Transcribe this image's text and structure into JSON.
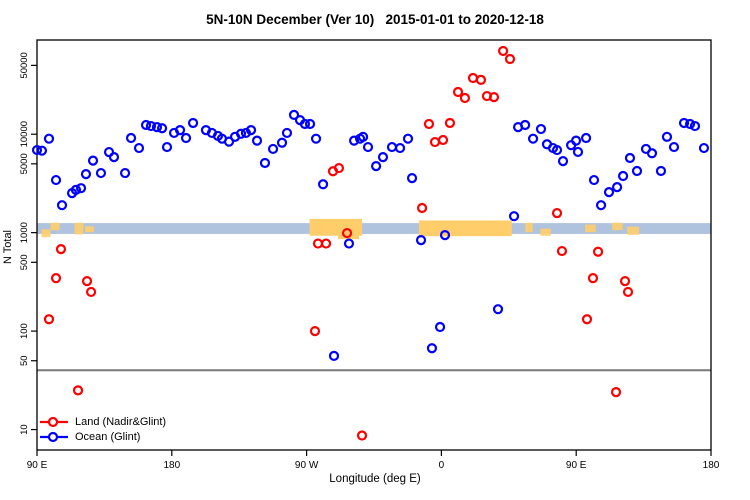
{
  "title": "5N-10N December (Ver 10)   2015-01-01 to 2020-12-18",
  "chart_data": {
    "type": "scatter",
    "title": "5N-10N December (Ver 10)   2015-01-01 to 2020-12-18",
    "xlabel": "Longitude (deg E)",
    "ylabel": "N Total",
    "grid": false,
    "legend_position": "inside-bottom-left",
    "x_axis": {
      "span": 450,
      "ticks": [
        {
          "t": 0,
          "label": "90 E"
        },
        {
          "t": 90,
          "label": "180"
        },
        {
          "t": 180,
          "label": "90 W"
        },
        {
          "t": 270,
          "label": "0"
        },
        {
          "t": 360,
          "label": "90 E"
        },
        {
          "t": 450,
          "label": "180"
        }
      ]
    },
    "y_axis": {
      "log": true,
      "min": 6.2,
      "max": 90500,
      "ticks": [
        10,
        50,
        100,
        500,
        1000,
        5000,
        10000,
        50000
      ]
    },
    "threshold_line": {
      "value": 40,
      "color": "#787878"
    },
    "band": {
      "from": 970,
      "to": 1250,
      "color": "#AFC2DE"
    },
    "orange_segments": [
      {
        "t0": 182,
        "t1": 217,
        "v0": 930,
        "v1": 1380,
        "minor": false
      },
      {
        "t0": 201,
        "t1": 215,
        "v0": 860,
        "v1": 980,
        "minor": false
      },
      {
        "t0": 255,
        "t1": 317,
        "v0": 920,
        "v1": 1330,
        "minor": false
      },
      {
        "t0": 3,
        "t1": 9,
        "v0": 900,
        "v1": 1080,
        "minor": true
      },
      {
        "t0": 9,
        "t1": 15,
        "v0": 1060,
        "v1": 1260,
        "minor": true
      },
      {
        "t0": 25,
        "t1": 31,
        "v0": 960,
        "v1": 1260,
        "minor": true
      },
      {
        "t0": 32,
        "t1": 38,
        "v0": 1010,
        "v1": 1160,
        "minor": true
      },
      {
        "t0": 326,
        "t1": 331,
        "v0": 1010,
        "v1": 1260,
        "minor": true
      },
      {
        "t0": 336,
        "t1": 343,
        "v0": 930,
        "v1": 1100,
        "minor": true
      },
      {
        "t0": 366,
        "t1": 373,
        "v0": 1010,
        "v1": 1210,
        "minor": true
      },
      {
        "t0": 384,
        "t1": 391,
        "v0": 1060,
        "v1": 1260,
        "minor": true
      },
      {
        "t0": 394,
        "t1": 402,
        "v0": 950,
        "v1": 1150,
        "minor": true
      }
    ],
    "orange_color": "#FFCE6B",
    "series": [
      {
        "name": "Land (Nadir&Glint)",
        "color": "#FF0000",
        "points": [
          [
            8,
            132
          ],
          [
            12.7,
            345
          ],
          [
            16,
            680
          ],
          [
            27.4,
            25
          ],
          [
            33.4,
            322
          ],
          [
            36.1,
            250
          ],
          [
            185.6,
            100
          ],
          [
            187.6,
            775
          ],
          [
            193,
            775
          ],
          [
            197.6,
            4200
          ],
          [
            201.6,
            4530
          ],
          [
            207,
            990
          ],
          [
            217,
            8.7
          ],
          [
            257.1,
            1780
          ],
          [
            261.7,
            12700
          ],
          [
            265.7,
            8320
          ],
          [
            271.1,
            8730
          ],
          [
            275.7,
            13000
          ],
          [
            281.1,
            26800
          ],
          [
            285.7,
            23300
          ],
          [
            291.1,
            37200
          ],
          [
            296.4,
            35600
          ],
          [
            300.4,
            24400
          ],
          [
            305.1,
            23800
          ],
          [
            311.2,
            70000
          ],
          [
            315.8,
            58000
          ],
          [
            347.2,
            1580
          ],
          [
            350.5,
            650
          ],
          [
            367.2,
            132
          ],
          [
            371.2,
            345
          ],
          [
            374.6,
            640
          ],
          [
            386.6,
            24
          ],
          [
            392.6,
            322
          ],
          [
            394.6,
            250
          ]
        ]
      },
      {
        "name": "Ocean (Glint)",
        "color": "#0000FF",
        "points": [
          [
            0,
            6900
          ],
          [
            3.3,
            6800
          ],
          [
            8,
            9000
          ],
          [
            12.7,
            3420
          ],
          [
            16.7,
            1900
          ],
          [
            23.4,
            2520
          ],
          [
            26,
            2720
          ],
          [
            29.4,
            2830
          ],
          [
            32.7,
            3930
          ],
          [
            37.4,
            5390
          ],
          [
            42.7,
            4030
          ],
          [
            48.1,
            6580
          ],
          [
            51.4,
            5850
          ],
          [
            58.8,
            4030
          ],
          [
            62.8,
            9140
          ],
          [
            68.1,
            7230
          ],
          [
            72.8,
            12400
          ],
          [
            76.1,
            12100
          ],
          [
            80.1,
            11800
          ],
          [
            83.5,
            11500
          ],
          [
            86.8,
            7400
          ],
          [
            91.5,
            10300
          ],
          [
            95.5,
            11000
          ],
          [
            99.5,
            9140
          ],
          [
            104.2,
            13000
          ],
          [
            112.8,
            11000
          ],
          [
            116.8,
            10300
          ],
          [
            120.8,
            9600
          ],
          [
            123.5,
            9000
          ],
          [
            128.2,
            8400
          ],
          [
            132.2,
            9400
          ],
          [
            136.2,
            10100
          ],
          [
            139.5,
            10300
          ],
          [
            142.9,
            11000
          ],
          [
            146.9,
            8600
          ],
          [
            152.2,
            5100
          ],
          [
            157.6,
            7080
          ],
          [
            163.6,
            8190
          ],
          [
            166.9,
            10300
          ],
          [
            171.6,
            15700
          ],
          [
            175.6,
            13900
          ],
          [
            178.9,
            12700
          ],
          [
            182.3,
            12700
          ],
          [
            186.3,
            9000
          ],
          [
            191,
            3100
          ],
          [
            198.3,
            56
          ],
          [
            208.3,
            775
          ],
          [
            211.7,
            8600
          ],
          [
            215.7,
            9000
          ],
          [
            217.7,
            9400
          ],
          [
            221,
            7400
          ],
          [
            226.4,
            4740
          ],
          [
            231,
            5850
          ],
          [
            237,
            7400
          ],
          [
            242.4,
            7230
          ],
          [
            247.7,
            9000
          ],
          [
            250.4,
            3580
          ],
          [
            256.4,
            840
          ],
          [
            263.7,
            67
          ],
          [
            269.1,
            110
          ],
          [
            272.4,
            944
          ],
          [
            307.8,
            167
          ],
          [
            318.5,
            1470
          ],
          [
            321.2,
            11800
          ],
          [
            325.9,
            12400
          ],
          [
            331.2,
            9000
          ],
          [
            336.5,
            11280
          ],
          [
            340.5,
            7900
          ],
          [
            344.5,
            7230
          ],
          [
            347.2,
            6900
          ],
          [
            351.2,
            5330
          ],
          [
            356.6,
            7730
          ],
          [
            359.9,
            8600
          ],
          [
            361.2,
            6600
          ],
          [
            366.6,
            9140
          ],
          [
            371.9,
            3420
          ],
          [
            376.6,
            1900
          ],
          [
            381.9,
            2580
          ],
          [
            387.3,
            2900
          ],
          [
            391.3,
            3760
          ],
          [
            395.9,
            5730
          ],
          [
            400.6,
            4230
          ],
          [
            406.6,
            7080
          ],
          [
            410.6,
            6400
          ],
          [
            416.6,
            4230
          ],
          [
            420.6,
            9400
          ],
          [
            425.3,
            7400
          ],
          [
            432,
            13000
          ],
          [
            436,
            12700
          ],
          [
            439.3,
            12100
          ],
          [
            445.3,
            7230
          ]
        ]
      }
    ]
  }
}
